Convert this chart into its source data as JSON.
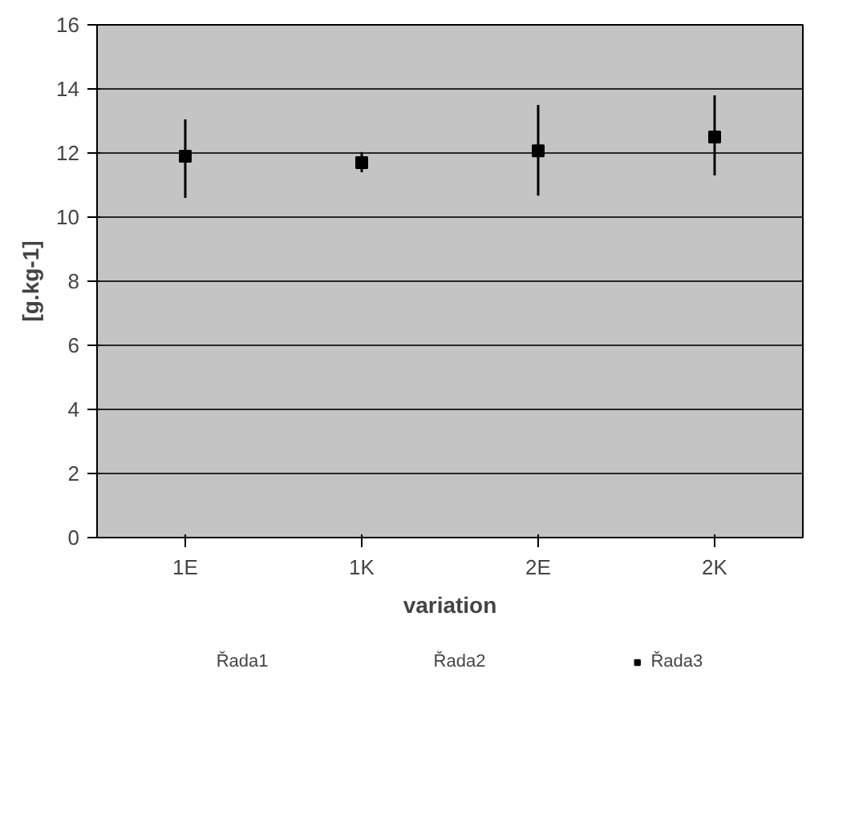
{
  "chart_data": {
    "type": "scatter",
    "xlabel": "variation",
    "ylabel": "[g.kg-1]",
    "categories": [
      "1E",
      "1K",
      "2E",
      "2K"
    ],
    "series": [
      {
        "name": "Řada1",
        "values": [
          null,
          null,
          null,
          null
        ]
      },
      {
        "name": "Řada2",
        "values": [
          null,
          null,
          null,
          null
        ]
      },
      {
        "name": "Řada3",
        "color": "#000000",
        "marker": "square",
        "values": [
          11.9,
          11.7,
          12.07,
          12.5
        ],
        "errors": [
          [
            10.6,
            13.05
          ],
          [
            11.4,
            12.03
          ],
          [
            10.67,
            13.5
          ],
          [
            11.3,
            13.8
          ]
        ]
      }
    ],
    "ylim": [
      0,
      16
    ],
    "yticks": [
      0,
      2,
      4,
      6,
      8,
      10,
      12,
      14,
      16
    ],
    "grid": "y",
    "legend": "bottom"
  }
}
